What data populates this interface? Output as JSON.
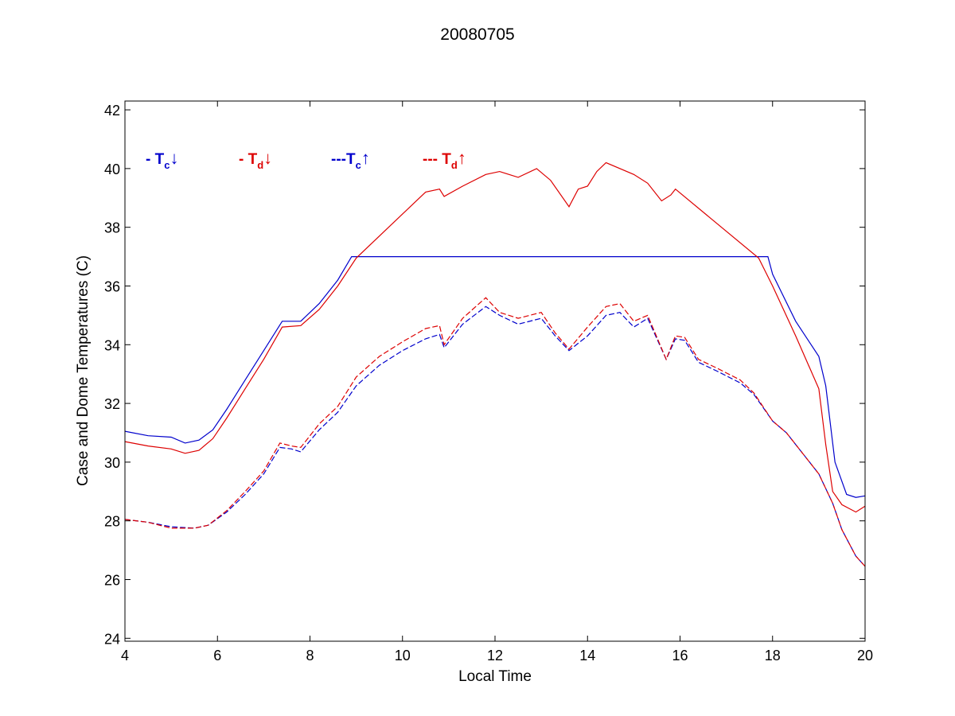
{
  "colors": {
    "blue": "#0000cc",
    "red": "#dd0000"
  },
  "chart_data": {
    "type": "line",
    "title": "20080705",
    "xlabel": "Local Time",
    "ylabel": "Case and Dome Temperatures (C)",
    "xlim": [
      4,
      20
    ],
    "ylim": [
      23.9,
      42.3
    ],
    "xticks": [
      "4",
      "6",
      "8",
      "10",
      "12",
      "14",
      "16",
      "18",
      "20"
    ],
    "yticks": [
      "24",
      "26",
      "28",
      "30",
      "32",
      "34",
      "36",
      "38",
      "40",
      "42"
    ],
    "grid": false,
    "legend": {
      "placement": "top-left",
      "items": [
        {
          "prefix": "- T",
          "sub": "c",
          "arrow": "↓",
          "color": "blue"
        },
        {
          "prefix": "- T",
          "sub": "d",
          "arrow": "↓",
          "color": "red"
        },
        {
          "prefix": "---T",
          "sub": "c",
          "arrow": "↑",
          "color": "blue"
        },
        {
          "prefix": "--- T",
          "sub": "d",
          "arrow": "↑",
          "color": "red"
        }
      ]
    },
    "series": [
      {
        "color": "blue",
        "dash": "solid",
        "points": [
          [
            4.0,
            31.05
          ],
          [
            4.5,
            30.9
          ],
          [
            5.0,
            30.85
          ],
          [
            5.3,
            30.65
          ],
          [
            5.6,
            30.75
          ],
          [
            5.9,
            31.1
          ],
          [
            6.2,
            31.8
          ],
          [
            6.6,
            32.8
          ],
          [
            7.0,
            33.8
          ],
          [
            7.4,
            34.8
          ],
          [
            7.8,
            34.8
          ],
          [
            8.2,
            35.4
          ],
          [
            8.6,
            36.2
          ],
          [
            8.9,
            37.0
          ],
          [
            17.9,
            37.0
          ],
          [
            18.0,
            36.4
          ],
          [
            18.5,
            34.8
          ],
          [
            19.0,
            33.6
          ],
          [
            19.15,
            32.6
          ],
          [
            19.35,
            30.0
          ],
          [
            19.6,
            28.9
          ],
          [
            19.8,
            28.8
          ],
          [
            20.0,
            28.85
          ]
        ]
      },
      {
        "color": "red",
        "dash": "solid",
        "points": [
          [
            4.0,
            30.7
          ],
          [
            4.5,
            30.55
          ],
          [
            5.0,
            30.45
          ],
          [
            5.3,
            30.3
          ],
          [
            5.6,
            30.4
          ],
          [
            5.9,
            30.8
          ],
          [
            6.2,
            31.5
          ],
          [
            6.6,
            32.5
          ],
          [
            7.0,
            33.5
          ],
          [
            7.4,
            34.6
          ],
          [
            7.8,
            34.65
          ],
          [
            8.2,
            35.2
          ],
          [
            8.6,
            36.0
          ],
          [
            9.0,
            36.95
          ],
          [
            10.5,
            39.2
          ],
          [
            10.8,
            39.3
          ],
          [
            10.9,
            39.05
          ],
          [
            11.3,
            39.4
          ],
          [
            11.8,
            39.8
          ],
          [
            12.1,
            39.9
          ],
          [
            12.2,
            39.85
          ],
          [
            12.5,
            39.7
          ],
          [
            12.9,
            40.0
          ],
          [
            13.2,
            39.6
          ],
          [
            13.6,
            38.7
          ],
          [
            13.8,
            39.3
          ],
          [
            14.0,
            39.4
          ],
          [
            14.2,
            39.9
          ],
          [
            14.4,
            40.2
          ],
          [
            15.0,
            39.8
          ],
          [
            15.3,
            39.5
          ],
          [
            15.6,
            38.9
          ],
          [
            15.8,
            39.1
          ],
          [
            15.9,
            39.3
          ],
          [
            17.7,
            36.95
          ],
          [
            18.0,
            36.0
          ],
          [
            18.5,
            34.3
          ],
          [
            19.0,
            32.5
          ],
          [
            19.15,
            30.6
          ],
          [
            19.3,
            29.0
          ],
          [
            19.5,
            28.55
          ],
          [
            19.8,
            28.3
          ],
          [
            20.0,
            28.5
          ]
        ]
      },
      {
        "color": "blue",
        "dash": "dashed",
        "points": [
          [
            4.0,
            28.05
          ],
          [
            4.5,
            27.95
          ],
          [
            5.0,
            27.8
          ],
          [
            5.5,
            27.75
          ],
          [
            5.8,
            27.85
          ],
          [
            6.2,
            28.3
          ],
          [
            6.6,
            28.9
          ],
          [
            7.0,
            29.6
          ],
          [
            7.35,
            30.5
          ],
          [
            7.6,
            30.45
          ],
          [
            7.8,
            30.35
          ],
          [
            8.2,
            31.1
          ],
          [
            8.6,
            31.7
          ],
          [
            9.0,
            32.6
          ],
          [
            9.5,
            33.3
          ],
          [
            10.0,
            33.8
          ],
          [
            10.5,
            34.2
          ],
          [
            10.8,
            34.35
          ],
          [
            10.9,
            33.9
          ],
          [
            11.3,
            34.7
          ],
          [
            11.8,
            35.3
          ],
          [
            12.1,
            35.0
          ],
          [
            12.5,
            34.7
          ],
          [
            13.0,
            34.9
          ],
          [
            13.3,
            34.3
          ],
          [
            13.6,
            33.8
          ],
          [
            14.0,
            34.3
          ],
          [
            14.4,
            35.0
          ],
          [
            14.7,
            35.1
          ],
          [
            15.0,
            34.6
          ],
          [
            15.3,
            34.9
          ],
          [
            15.7,
            33.5
          ],
          [
            15.9,
            34.2
          ],
          [
            16.1,
            34.15
          ],
          [
            16.4,
            33.4
          ],
          [
            16.8,
            33.1
          ],
          [
            17.3,
            32.7
          ],
          [
            17.6,
            32.3
          ],
          [
            18.0,
            31.4
          ],
          [
            18.3,
            31.0
          ],
          [
            18.6,
            30.4
          ],
          [
            19.0,
            29.6
          ],
          [
            19.3,
            28.6
          ],
          [
            19.5,
            27.7
          ],
          [
            19.8,
            26.8
          ],
          [
            20.0,
            26.45
          ]
        ]
      },
      {
        "color": "red",
        "dash": "dashed",
        "points": [
          [
            4.0,
            28.05
          ],
          [
            4.5,
            27.95
          ],
          [
            5.0,
            27.75
          ],
          [
            5.5,
            27.75
          ],
          [
            5.8,
            27.85
          ],
          [
            6.2,
            28.35
          ],
          [
            6.6,
            29.0
          ],
          [
            7.0,
            29.7
          ],
          [
            7.35,
            30.65
          ],
          [
            7.6,
            30.55
          ],
          [
            7.8,
            30.5
          ],
          [
            8.2,
            31.3
          ],
          [
            8.6,
            31.9
          ],
          [
            9.0,
            32.9
          ],
          [
            9.5,
            33.6
          ],
          [
            10.0,
            34.1
          ],
          [
            10.5,
            34.55
          ],
          [
            10.8,
            34.65
          ],
          [
            10.9,
            34.0
          ],
          [
            11.3,
            34.9
          ],
          [
            11.8,
            35.6
          ],
          [
            12.1,
            35.1
          ],
          [
            12.5,
            34.9
          ],
          [
            13.0,
            35.1
          ],
          [
            13.3,
            34.4
          ],
          [
            13.6,
            33.85
          ],
          [
            14.0,
            34.6
          ],
          [
            14.4,
            35.3
          ],
          [
            14.7,
            35.4
          ],
          [
            15.0,
            34.8
          ],
          [
            15.3,
            35.0
          ],
          [
            15.7,
            33.5
          ],
          [
            15.9,
            34.3
          ],
          [
            16.1,
            34.25
          ],
          [
            16.4,
            33.5
          ],
          [
            16.8,
            33.2
          ],
          [
            17.3,
            32.8
          ],
          [
            17.6,
            32.35
          ],
          [
            18.0,
            31.4
          ],
          [
            18.3,
            31.0
          ],
          [
            18.6,
            30.4
          ],
          [
            19.0,
            29.6
          ],
          [
            19.3,
            28.6
          ],
          [
            19.5,
            27.7
          ],
          [
            19.8,
            26.8
          ],
          [
            20.0,
            26.45
          ]
        ]
      }
    ]
  }
}
